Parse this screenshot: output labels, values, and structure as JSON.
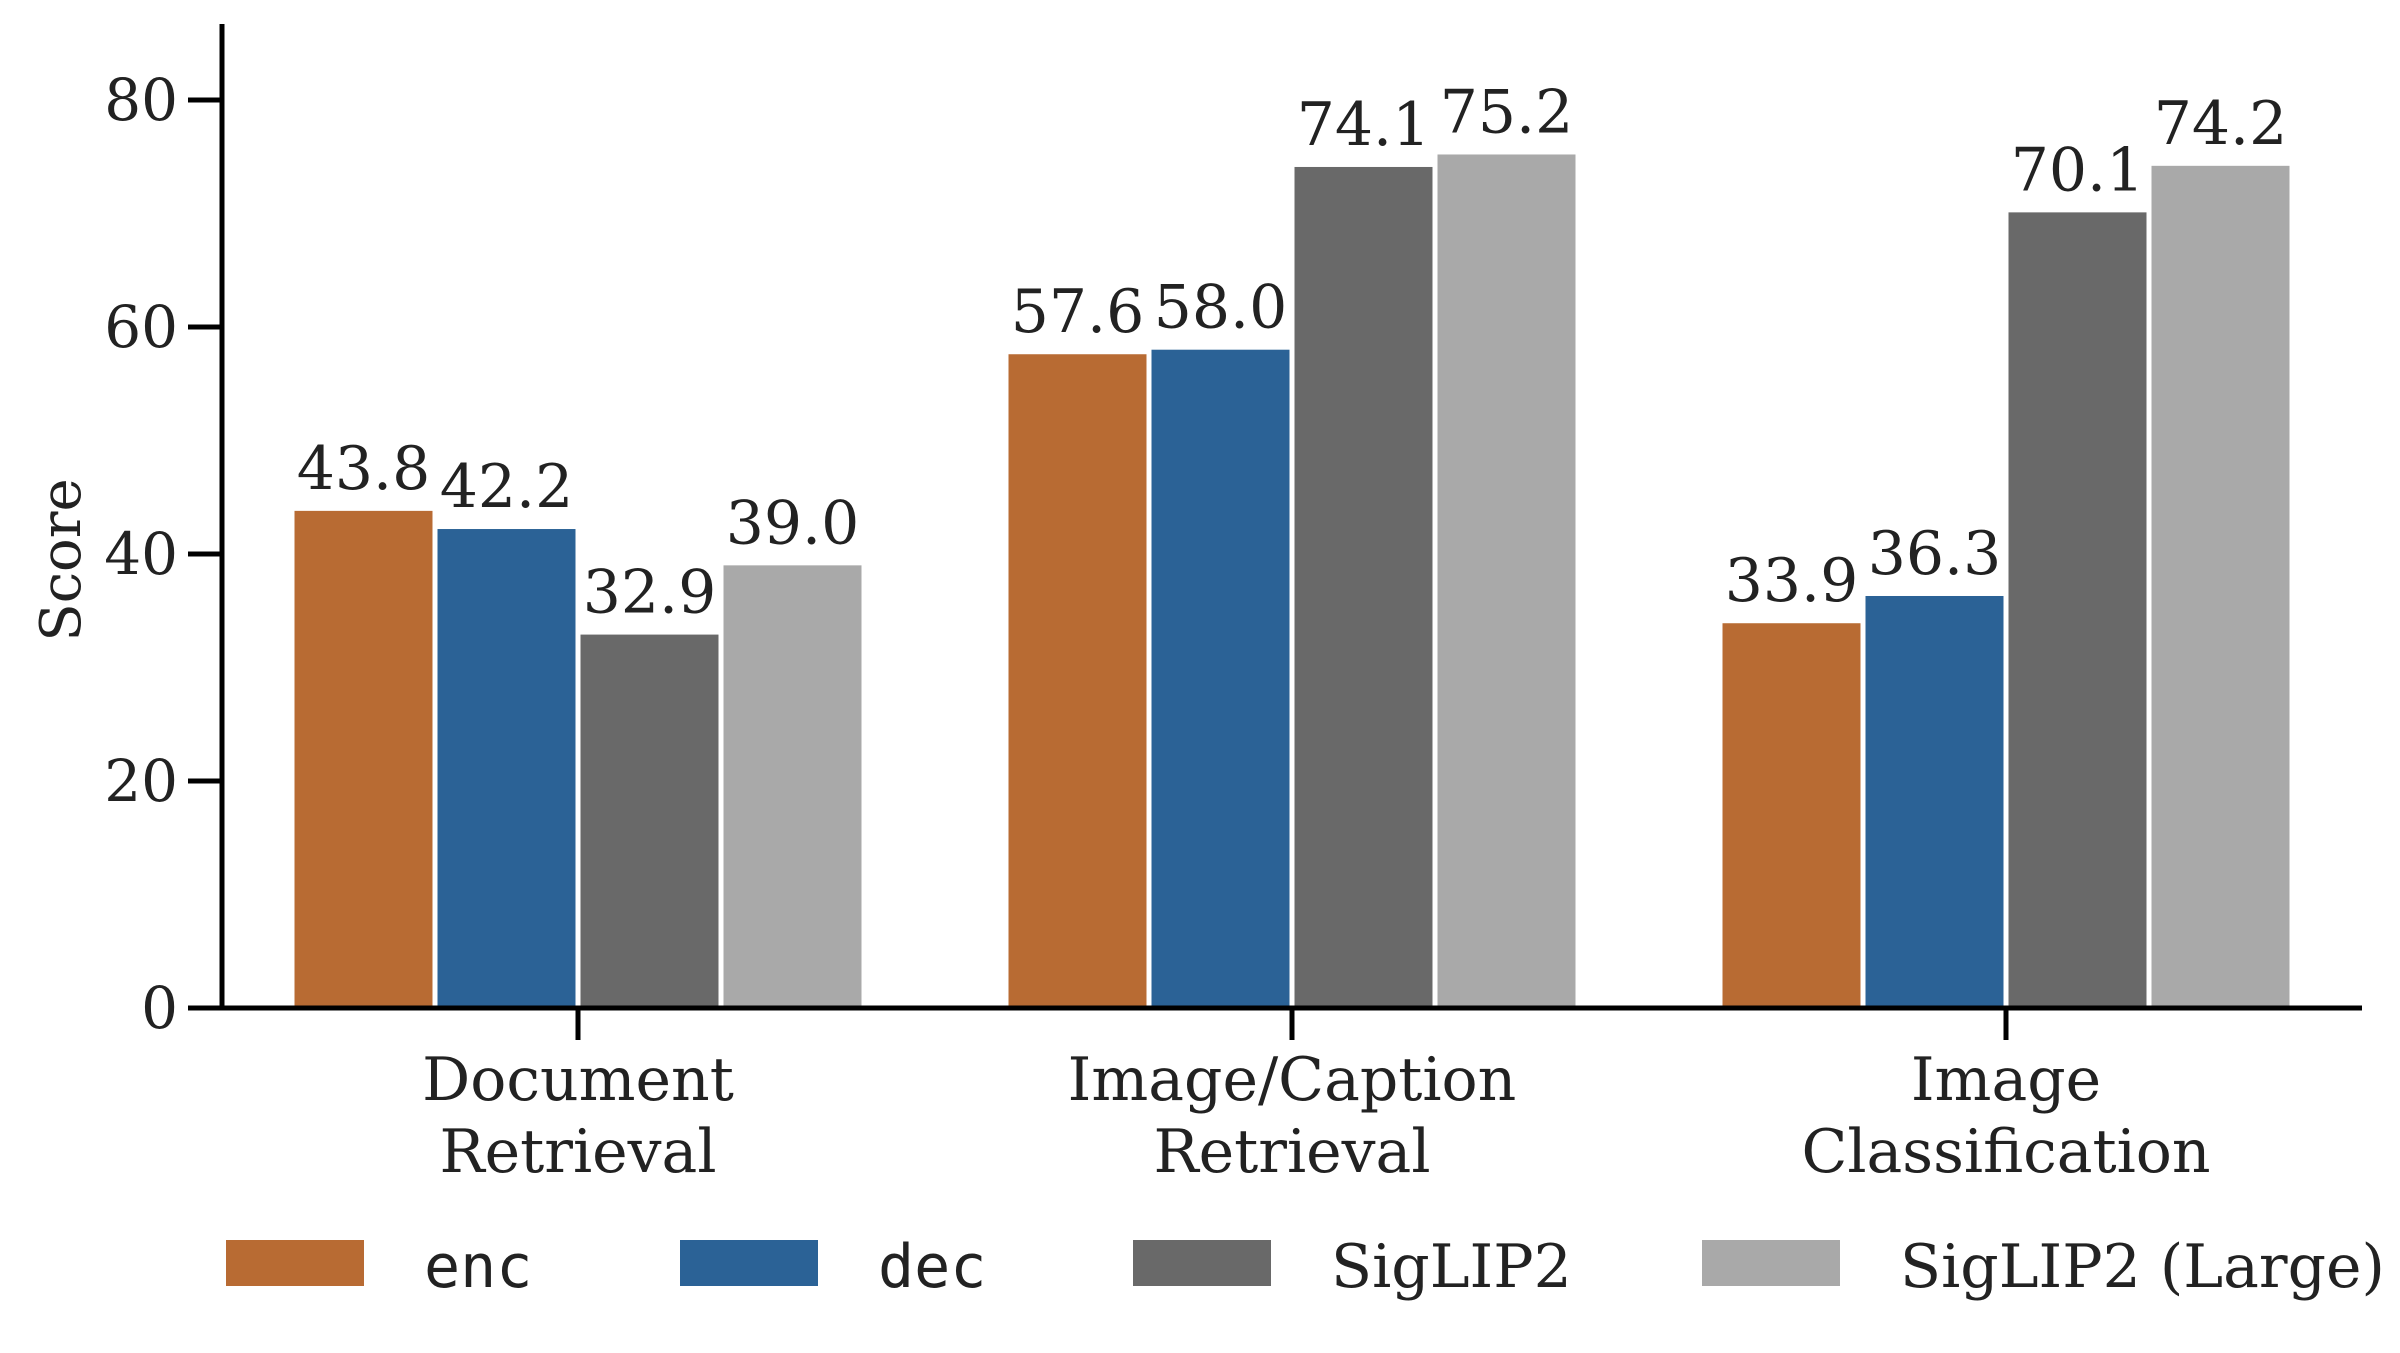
{
  "chart_data": {
    "type": "bar",
    "title": "",
    "xlabel": "",
    "ylabel": "Score",
    "ylim": [
      0,
      87
    ],
    "yticks": [
      0,
      20,
      40,
      60,
      80
    ],
    "grid": false,
    "legend_position": "bottom",
    "categories": [
      [
        "Document",
        "Retrieval"
      ],
      [
        "Image/Caption",
        "Retrieval"
      ],
      [
        "Image",
        "Classification"
      ]
    ],
    "series": [
      {
        "name": "enc",
        "color": "#b86b33",
        "monospace": true,
        "values": [
          43.8,
          57.6,
          33.9
        ]
      },
      {
        "name": "dec",
        "color": "#2b6296",
        "monospace": true,
        "values": [
          42.2,
          58.0,
          36.3
        ]
      },
      {
        "name": "SigLIP2",
        "color": "#696969",
        "monospace": false,
        "values": [
          32.9,
          74.1,
          70.1
        ]
      },
      {
        "name": "SigLIP2 (Large)",
        "color": "#a9a9a9",
        "monospace": false,
        "values": [
          39.0,
          75.2,
          74.2
        ]
      }
    ],
    "data_labels": [
      [
        "43.8",
        "57.6",
        "33.9"
      ],
      [
        "42.2",
        "58.0",
        "36.3"
      ],
      [
        "32.9",
        "74.1",
        "70.1"
      ],
      [
        "39.0",
        "75.2",
        "74.2"
      ]
    ]
  }
}
